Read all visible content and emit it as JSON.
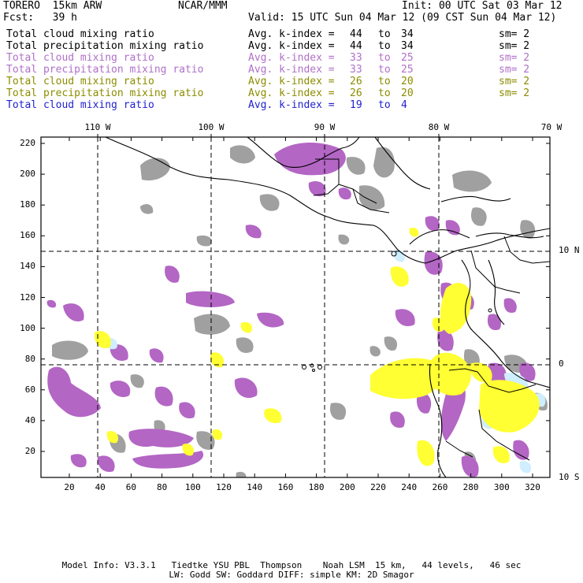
{
  "header": {
    "model": "TORERO  15km ARW",
    "org": "NCAR/MMM",
    "init": "Init: 00 UTC Sat 03 Mar 12",
    "fcst": "Fcst:   39 h",
    "valid": "Valid: 15 UTC Sun 04 Mar 12 (09 CST Sun 04 Mar 12)"
  },
  "legend": [
    {
      "field": "Total cloud mixing ratio",
      "avg": "Avg. k-index =",
      "k1": "44",
      "to": "to",
      "k2": "34",
      "sm": "sm= 2",
      "color": "#000000"
    },
    {
      "field": "Total precipitation mixing ratio",
      "avg": "Avg. k-index =",
      "k1": "44",
      "to": "to",
      "k2": "34",
      "sm": "sm= 2",
      "color": "#000000"
    },
    {
      "field": "Total cloud mixing ratio",
      "avg": "Avg. k-index =",
      "k1": "33",
      "to": "to",
      "k2": "25",
      "sm": "sm= 2",
      "color": "#b070c8"
    },
    {
      "field": "Total precipitation mixing ratio",
      "avg": "Avg. k-index =",
      "k1": "33",
      "to": "to",
      "k2": "25",
      "sm": "sm= 2",
      "color": "#b070c8"
    },
    {
      "field": "Total cloud mixing ratio",
      "avg": "Avg. k-index =",
      "k1": "26",
      "to": "to",
      "k2": "20",
      "sm": "sm= 2",
      "color": "#8c8c00"
    },
    {
      "field": "Total precipitation mixing ratio",
      "avg": "Avg. k-index =",
      "k1": "26",
      "to": "to",
      "k2": "20",
      "sm": "sm= 2",
      "color": "#8c8c00"
    },
    {
      "field": "Total cloud mixing ratio",
      "avg": "Avg. k-index =",
      "k1": "19",
      "to": "to",
      "k2": "4",
      "sm": "",
      "color": "#1f1fd0"
    }
  ],
  "map": {
    "top_lon_labels": [
      "110 W",
      "100 W",
      "90 W",
      "80 W",
      "70 W"
    ],
    "right_lat_labels": [
      "10 N",
      "0",
      "10 S"
    ],
    "y_ticks": [
      "220",
      "200",
      "180",
      "160",
      "140",
      "120",
      "100",
      "80",
      "60",
      "40",
      "20"
    ],
    "x_ticks": [
      "20",
      "40",
      "60",
      "80",
      "100",
      "120",
      "140",
      "160",
      "180",
      "200",
      "220",
      "240",
      "260",
      "280",
      "300",
      "320"
    ],
    "colors": {
      "gray": "#a0a0a0",
      "purple": "#b366c4",
      "yellow": "#ffff33",
      "lightblue": "#cfeeff"
    }
  },
  "footer": {
    "line1": "Model Info: V3.3.1   Tiedtke YSU PBL  Thompson    Noah LSM  15 km,   44 levels,   46 sec",
    "line2": "LW: Godd SW: Goddard DIFF: simple KM: 2D Smagor"
  }
}
